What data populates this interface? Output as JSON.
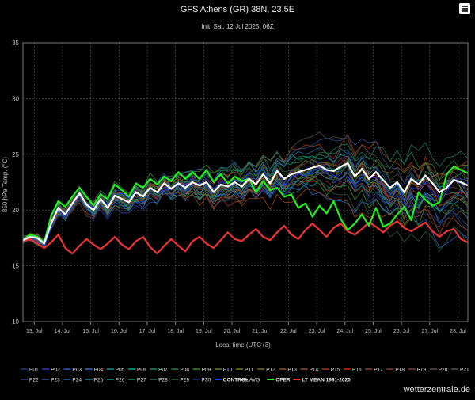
{
  "chart_data": {
    "type": "line",
    "title": "GFS Athens (GR) 38N, 23.5E",
    "subtitle": "Init: Sat, 12 Jul 2025, 06Z",
    "ylabel": "850 hPa Temp. (°C)",
    "xlabel": "Local time (UTC+3)",
    "ylim": [
      10,
      35
    ],
    "yticks": [
      10,
      15,
      20,
      25,
      30,
      35
    ],
    "xlim": [
      12.6,
      28.35
    ],
    "xticks": [
      {
        "x": 13,
        "label": "13. Jul"
      },
      {
        "x": 14,
        "label": "14. Jul"
      },
      {
        "x": 15,
        "label": "15. Jul"
      },
      {
        "x": 16,
        "label": "16. Jul"
      },
      {
        "x": 17,
        "label": "17. Jul"
      },
      {
        "x": 18,
        "label": "18. Jul"
      },
      {
        "x": 19,
        "label": "19. Jul"
      },
      {
        "x": 20,
        "label": "20. Jul"
      },
      {
        "x": 21,
        "label": "21. Jul"
      },
      {
        "x": 22,
        "label": "22. Jul"
      },
      {
        "x": 23,
        "label": "23. Jul"
      },
      {
        "x": 24,
        "label": "24. Jul"
      },
      {
        "x": 25,
        "label": "25. Jul"
      },
      {
        "x": 26,
        "label": "26. Jul"
      },
      {
        "x": 27,
        "label": "27. Jul"
      },
      {
        "x": 28,
        "label": "28. Jul"
      }
    ],
    "grid": true,
    "legend_position": "bottom",
    "key_series": [
      {
        "name": "AVG",
        "color": "#ffffff",
        "x": [
          12.6,
          12.85,
          13.1,
          13.35,
          13.6,
          13.85,
          14.1,
          14.35,
          14.6,
          14.85,
          15.1,
          15.35,
          15.6,
          15.85,
          16.1,
          16.35,
          16.6,
          16.85,
          17.1,
          17.35,
          17.6,
          17.85,
          18.1,
          18.35,
          18.6,
          18.85,
          19.1,
          19.35,
          19.6,
          19.85,
          20.1,
          20.35,
          20.6,
          20.85,
          21.1,
          21.35,
          21.6,
          21.85,
          22.1,
          22.35,
          22.6,
          22.85,
          23.1,
          23.35,
          23.6,
          23.85,
          24.1,
          24.35,
          24.6,
          24.85,
          25.1,
          25.35,
          25.6,
          25.85,
          26.1,
          26.35,
          26.6,
          26.85,
          27.1,
          27.35,
          27.6,
          27.85,
          28.1,
          28.35
        ],
        "y": [
          17.3,
          17.6,
          17.5,
          17.0,
          18.8,
          20.2,
          19.6,
          20.6,
          21.5,
          20.5,
          20.0,
          21.0,
          20.2,
          21.3,
          21.0,
          20.7,
          21.6,
          21.2,
          22.0,
          21.6,
          22.4,
          21.9,
          22.4,
          22.0,
          22.5,
          22.2,
          22.5,
          21.6,
          22.3,
          22.1,
          22.5,
          22.1,
          22.8,
          22.3,
          23.2,
          22.4,
          23.5,
          22.8,
          23.2,
          23.4,
          23.6,
          23.8,
          24.0,
          23.6,
          23.5,
          23.9,
          24.2,
          23.0,
          23.7,
          22.8,
          23.4,
          22.7,
          22.0,
          22.5,
          21.6,
          22.8,
          22.3,
          23.1,
          22.4,
          21.6,
          22.0,
          22.7,
          22.5,
          22.2
        ]
      },
      {
        "name": "OPER",
        "color": "#22ee22",
        "x": [
          12.6,
          12.85,
          13.1,
          13.35,
          13.6,
          13.85,
          14.1,
          14.35,
          14.6,
          14.85,
          15.1,
          15.35,
          15.6,
          15.85,
          16.1,
          16.35,
          16.6,
          16.85,
          17.1,
          17.35,
          17.6,
          17.85,
          18.1,
          18.35,
          18.6,
          18.85,
          19.1,
          19.35,
          19.6,
          19.85,
          20.1,
          20.35,
          20.6,
          20.85,
          21.1,
          21.35,
          21.6,
          21.85,
          22.1,
          22.35,
          22.6,
          22.85,
          23.1,
          23.35,
          23.6,
          23.85,
          24.1,
          24.35,
          24.6,
          24.85,
          25.1,
          25.35,
          25.6,
          25.85,
          26.1,
          26.35,
          26.6,
          26.85,
          27.1,
          27.35,
          27.6,
          27.85,
          28.1,
          28.35
        ],
        "y": [
          17.3,
          17.8,
          17.6,
          17.1,
          19.5,
          20.8,
          20.3,
          21.2,
          22.0,
          21.2,
          20.4,
          21.4,
          21.0,
          22.3,
          21.8,
          21.2,
          22.4,
          22.0,
          22.8,
          22.3,
          23.0,
          22.6,
          23.4,
          22.8,
          23.4,
          22.8,
          23.6,
          22.5,
          23.2,
          22.4,
          23.0,
          22.6,
          22.8,
          21.6,
          22.6,
          21.8,
          22.0,
          21.2,
          21.4,
          20.2,
          20.6,
          19.4,
          20.4,
          19.7,
          20.8,
          19.2,
          18.2,
          18.8,
          19.6,
          18.6,
          20.2,
          18.5,
          18.8,
          19.6,
          20.3,
          19.1,
          21.6,
          20.9,
          20.4,
          20.7,
          23.2,
          23.9,
          23.6,
          23.3
        ]
      },
      {
        "name": "LT MEAN 1991-2020",
        "color": "#ee3333",
        "x": [
          12.6,
          12.85,
          13.1,
          13.35,
          13.6,
          13.85,
          14.1,
          14.35,
          14.6,
          14.85,
          15.1,
          15.35,
          15.6,
          15.85,
          16.1,
          16.35,
          16.6,
          16.85,
          17.1,
          17.35,
          17.6,
          17.85,
          18.1,
          18.35,
          18.6,
          18.85,
          19.1,
          19.35,
          19.6,
          19.85,
          20.1,
          20.35,
          20.6,
          20.85,
          21.1,
          21.35,
          21.6,
          21.85,
          22.1,
          22.35,
          22.6,
          22.85,
          23.1,
          23.35,
          23.6,
          23.85,
          24.1,
          24.35,
          24.6,
          24.85,
          25.1,
          25.35,
          25.6,
          25.85,
          26.1,
          26.35,
          26.6,
          26.85,
          27.1,
          27.35,
          27.6,
          27.85,
          28.1,
          28.35
        ],
        "y": [
          17.2,
          17.4,
          17.0,
          16.6,
          17.1,
          17.8,
          16.6,
          16.1,
          16.8,
          17.4,
          16.9,
          16.5,
          17.0,
          17.6,
          16.9,
          16.5,
          17.2,
          17.6,
          16.7,
          16.1,
          16.8,
          17.4,
          16.8,
          16.3,
          17.2,
          17.6,
          17.0,
          16.6,
          17.3,
          18.0,
          17.4,
          17.2,
          17.8,
          18.3,
          17.6,
          17.3,
          18.0,
          18.6,
          17.8,
          17.4,
          18.2,
          18.8,
          18.2,
          17.6,
          18.4,
          18.8,
          18.1,
          17.8,
          18.3,
          18.9,
          18.5,
          18.0,
          18.6,
          19.0,
          18.4,
          18.1,
          18.5,
          18.9,
          18.1,
          17.6,
          18.1,
          18.3,
          17.4,
          17.1
        ]
      }
    ]
  },
  "legend": {
    "row1": [
      {
        "name": "P01",
        "color": "#1f3b8c"
      },
      {
        "name": "P02",
        "color": "#2846b0"
      },
      {
        "name": "P03",
        "color": "#2a59c8"
      },
      {
        "name": "P04",
        "color": "#2e6fd0"
      },
      {
        "name": "P05",
        "color": "#1d8ca6"
      },
      {
        "name": "P06",
        "color": "#1a9c8c"
      },
      {
        "name": "P07",
        "color": "#1d8a5a"
      },
      {
        "name": "P08",
        "color": "#2a7a3a"
      },
      {
        "name": "P09",
        "color": "#3d8c2a"
      },
      {
        "name": "P10",
        "color": "#5a8a22"
      },
      {
        "name": "P11",
        "color": "#6e7a1e"
      },
      {
        "name": "P12",
        "color": "#7a6a1a"
      },
      {
        "name": "P13",
        "color": "#8a5a1a"
      },
      {
        "name": "P14",
        "color": "#9a4a1a"
      },
      {
        "name": "P15",
        "color": "#a03a1a"
      },
      {
        "name": "P16",
        "color": "#a8301c"
      },
      {
        "name": "P17",
        "color": "#9c3a26"
      },
      {
        "name": "P18",
        "color": "#8a3e32"
      },
      {
        "name": "P19",
        "color": "#7a4436"
      },
      {
        "name": "P20",
        "color": "#6a4a3a"
      },
      {
        "name": "P21",
        "color": "#5a4e40"
      }
    ],
    "row2": [
      {
        "name": "P22",
        "color": "#2c3e78"
      },
      {
        "name": "P23",
        "color": "#2e4e90"
      },
      {
        "name": "P24",
        "color": "#2a6aa0"
      },
      {
        "name": "P25",
        "color": "#1e7e96"
      },
      {
        "name": "P26",
        "color": "#1a8a80"
      },
      {
        "name": "P27",
        "color": "#1e7a5e"
      },
      {
        "name": "P28",
        "color": "#226a44"
      },
      {
        "name": "P29",
        "color": "#2a5e34"
      },
      {
        "name": "P30",
        "color": "#1e2a80"
      },
      {
        "name": "CONTROL",
        "color": "#1a3aff"
      },
      {
        "name": "AVG",
        "color": "#ffffff"
      },
      {
        "name": "OPER",
        "color": "#22ee22"
      },
      {
        "name": "LT MEAN 1991-2020",
        "color": "#ee3333"
      }
    ]
  },
  "watermark": "wetterzentrale.de",
  "colors": {
    "background": "#000000",
    "grid": "#5a5a5a",
    "axis_text": "#bbbbbb"
  }
}
